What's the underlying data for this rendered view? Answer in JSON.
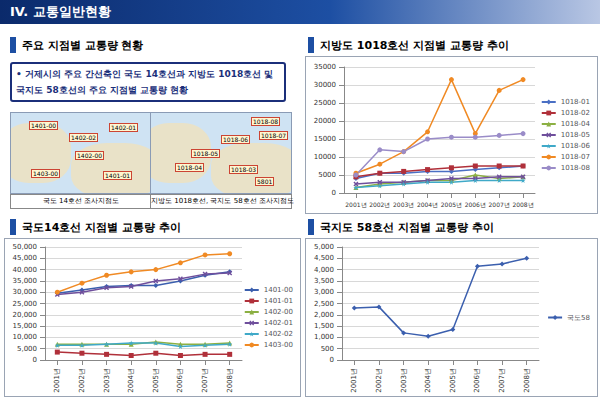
{
  "header": {
    "title": "IV. 교통일반현황"
  },
  "overview": {
    "title": "주요 지점별 교통량 현황",
    "text": "• 거제시의 주요 간선축인 국도 14호선과 지방도 1018호선 및 국지도 58호선의 주요 지점별 교통량 현황",
    "maps": [
      {
        "caption": "국도 14호선 조사지점도",
        "labels": [
          "1401-00",
          "1402-02",
          "1402-01",
          "1402-00",
          "1403-00",
          "1401-01"
        ]
      },
      {
        "caption": "지방도 1018호선, 국지도 58호선 조사지점도",
        "labels": [
          "1018-08",
          "1018-07",
          "1018-06",
          "1018-05",
          "1018-04",
          "1018-03",
          "5801"
        ]
      }
    ]
  },
  "chart_data": [
    {
      "type": "line",
      "title": "지방도 1018호선 지점별 교통량 추이",
      "categories": [
        "2001년",
        "2002년",
        "2003년",
        "2004년",
        "2005년",
        "2006년",
        "2007년",
        "2008년"
      ],
      "ylim": [
        0,
        35000
      ],
      "yticks": [
        0,
        5000,
        10000,
        15000,
        20000,
        25000,
        30000,
        35000
      ],
      "grid": true,
      "legend": "right",
      "series": [
        {
          "name": "1018-01",
          "color": "#4a6fc4",
          "marker": "diamond",
          "values": [
            4000,
            5500,
            5500,
            6000,
            6000,
            6500,
            7000,
            7500
          ]
        },
        {
          "name": "1018-02",
          "color": "#b0303a",
          "marker": "square",
          "values": [
            4500,
            5500,
            6000,
            6500,
            7000,
            7500,
            7500,
            7500
          ]
        },
        {
          "name": "1018-04",
          "color": "#8cb043",
          "marker": "triangle",
          "values": [
            1500,
            2500,
            3000,
            3500,
            3500,
            5000,
            4000,
            4500
          ]
        },
        {
          "name": "1018-05",
          "color": "#6f4f9c",
          "marker": "x",
          "values": [
            2500,
            3000,
            3000,
            3500,
            4000,
            4000,
            4500,
            4500
          ]
        },
        {
          "name": "1018-06",
          "color": "#3fa9c8",
          "marker": "star",
          "values": [
            1500,
            2000,
            2500,
            3000,
            3000,
            3500,
            3500,
            3500
          ]
        },
        {
          "name": "1018-07",
          "color": "#f08a24",
          "marker": "circle",
          "values": [
            5500,
            8000,
            11500,
            17000,
            31500,
            16500,
            28500,
            31500
          ]
        },
        {
          "name": "1018-08",
          "color": "#9a8cc8",
          "marker": "circle",
          "values": [
            5000,
            12000,
            11500,
            15000,
            15500,
            15500,
            16000,
            16500
          ]
        }
      ]
    },
    {
      "type": "line",
      "title": "국도14호선 지점별 교통량 추이",
      "categories": [
        "2001년",
        "2002년",
        "2003년",
        "2004년",
        "2005년",
        "2006년",
        "2007년",
        "2008년"
      ],
      "ylim": [
        0,
        50000
      ],
      "yticks": [
        0,
        {
          "value": 5000,
          "label": "5,000"
        },
        {
          "value": 10000,
          "label": "10,000"
        },
        {
          "value": 15000,
          "label": "15,000"
        },
        {
          "value": 20000,
          "label": "20,000"
        },
        {
          "value": 25000,
          "label": "25,000"
        },
        {
          "value": 30000,
          "label": "30,000"
        },
        {
          "value": 35000,
          "label": "35,000"
        },
        {
          "value": 40000,
          "label": "40,000"
        },
        {
          "value": 45000,
          "label": "45,000"
        },
        {
          "value": 50000,
          "label": "50,000"
        }
      ],
      "grid": true,
      "legend": "right",
      "series": [
        {
          "name": "1401-00",
          "color": "#3b5fae",
          "marker": "diamond",
          "values": [
            29500,
            31000,
            32500,
            33000,
            33000,
            35000,
            37500,
            39000
          ]
        },
        {
          "name": "1401-01",
          "color": "#b0303a",
          "marker": "square",
          "values": [
            3500,
            3000,
            2500,
            2000,
            3000,
            2000,
            2500,
            2500
          ]
        },
        {
          "name": "1402-00",
          "color": "#8cb043",
          "marker": "triangle",
          "values": [
            7000,
            7000,
            7000,
            7000,
            8000,
            7000,
            7000,
            7500
          ]
        },
        {
          "name": "1402-01",
          "color": "#6f4f9c",
          "marker": "x",
          "values": [
            29000,
            30000,
            32000,
            32500,
            35000,
            36000,
            38000,
            38500
          ]
        },
        {
          "name": "1402-02",
          "color": "#3fa9c8",
          "marker": "star",
          "values": [
            6500,
            6500,
            7000,
            7500,
            7500,
            6000,
            6500,
            7000
          ]
        },
        {
          "name": "1403-00",
          "color": "#f08a24",
          "marker": "circle",
          "values": [
            30000,
            34000,
            37500,
            39000,
            40000,
            43000,
            46500,
            47000
          ]
        }
      ]
    },
    {
      "type": "line",
      "title": "국지도 58호선 지점별 교통량 추이",
      "categories": [
        "2001년",
        "2002년",
        "2003년",
        "2004년",
        "2005년",
        "2006년",
        "2007년",
        "2008년"
      ],
      "ylim": [
        0,
        5000
      ],
      "yticks": [
        0,
        500,
        {
          "value": 1000,
          "label": "1,000"
        },
        {
          "value": 1500,
          "label": "1,500"
        },
        {
          "value": 2000,
          "label": "2,000"
        },
        {
          "value": 2500,
          "label": "2,500"
        },
        {
          "value": 3000,
          "label": "3,000"
        },
        {
          "value": 3500,
          "label": "3,500"
        },
        {
          "value": 4000,
          "label": "4,000"
        },
        {
          "value": 4500,
          "label": "4,500"
        },
        {
          "value": 5000,
          "label": "5,000"
        }
      ],
      "grid": true,
      "legend": "right",
      "series": [
        {
          "name": "국도58",
          "color": "#3b5fae",
          "marker": "diamond",
          "values": [
            2300,
            2350,
            1200,
            1050,
            1350,
            4150,
            4250,
            4500
          ]
        }
      ]
    }
  ]
}
